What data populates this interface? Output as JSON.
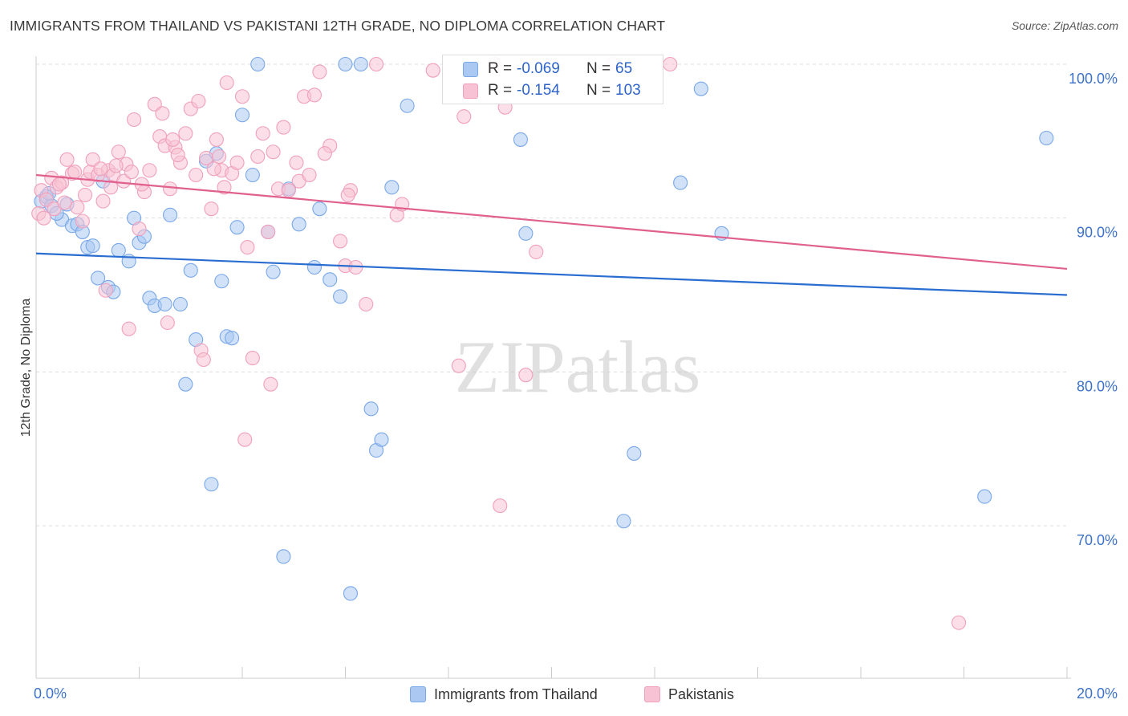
{
  "chart_data": {
    "type": "scatter",
    "title": "IMMIGRANTS FROM THAILAND VS PAKISTANI 12TH GRADE, NO DIPLOMA CORRELATION CHART",
    "source": "Source: ZipAtlas.com",
    "xlabel": "",
    "ylabel": "12th Grade, No Diploma",
    "xlim": [
      0,
      20
    ],
    "ylim": [
      60,
      100
    ],
    "x_tick_labels": [
      "0.0%",
      "20.0%"
    ],
    "y_ticks": [
      70,
      80,
      90,
      100
    ],
    "y_tick_labels": [
      "70.0%",
      "80.0%",
      "90.0%",
      "100.0%"
    ],
    "grid": true,
    "watermark": "ZIPatlas",
    "legend": {
      "position": "bottom-center",
      "items": [
        "Immigrants from Thailand",
        "Pakistanis"
      ]
    },
    "stats": [
      {
        "r_label": "R =",
        "r_value": "-0.069",
        "n_label": "N =",
        "n_value": "65"
      },
      {
        "r_label": "R =",
        "r_value": "-0.154",
        "n_label": "N =",
        "n_value": "103"
      }
    ],
    "series": [
      {
        "name": "Immigrants from Thailand",
        "color": "#7aa8e8",
        "fill": "#aac8f2",
        "line_color": "#2a6dd0",
        "trend": {
          "x": [
            0,
            20
          ],
          "y": [
            87.7,
            85.0
          ]
        },
        "points": [
          [
            0.1,
            91.1
          ],
          [
            0.2,
            91.4
          ],
          [
            0.3,
            90.8
          ],
          [
            0.5,
            89.9
          ],
          [
            0.6,
            90.9
          ],
          [
            0.7,
            89.5
          ],
          [
            0.8,
            89.6
          ],
          [
            0.9,
            89.1
          ],
          [
            1.0,
            88.1
          ],
          [
            1.1,
            88.2
          ],
          [
            1.2,
            86.1
          ],
          [
            1.4,
            85.5
          ],
          [
            1.5,
            85.2
          ],
          [
            1.6,
            87.9
          ],
          [
            1.8,
            87.2
          ],
          [
            1.9,
            90.0
          ],
          [
            2.0,
            88.4
          ],
          [
            2.1,
            88.8
          ],
          [
            2.2,
            84.8
          ],
          [
            2.3,
            84.3
          ],
          [
            2.5,
            84.4
          ],
          [
            2.6,
            90.2
          ],
          [
            2.8,
            84.4
          ],
          [
            2.9,
            79.2
          ],
          [
            3.0,
            86.6
          ],
          [
            3.1,
            82.1
          ],
          [
            3.3,
            93.7
          ],
          [
            3.4,
            72.7
          ],
          [
            3.5,
            94.2
          ],
          [
            3.6,
            85.9
          ],
          [
            3.7,
            82.3
          ],
          [
            3.8,
            82.2
          ],
          [
            3.9,
            89.4
          ],
          [
            4.0,
            96.7
          ],
          [
            4.2,
            92.8
          ],
          [
            4.3,
            100.0
          ],
          [
            4.5,
            89.1
          ],
          [
            4.6,
            86.5
          ],
          [
            4.8,
            68.0
          ],
          [
            4.9,
            91.9
          ],
          [
            5.1,
            89.6
          ],
          [
            5.4,
            86.8
          ],
          [
            5.5,
            90.6
          ],
          [
            5.7,
            86.0
          ],
          [
            5.9,
            84.9
          ],
          [
            6.0,
            100.0
          ],
          [
            6.1,
            65.6
          ],
          [
            6.3,
            100.0
          ],
          [
            6.5,
            77.6
          ],
          [
            6.6,
            74.9
          ],
          [
            6.7,
            75.6
          ],
          [
            6.9,
            92.0
          ],
          [
            7.2,
            97.3
          ],
          [
            9.4,
            95.1
          ],
          [
            9.5,
            89.0
          ],
          [
            11.4,
            70.3
          ],
          [
            11.6,
            74.7
          ],
          [
            12.5,
            92.3
          ],
          [
            12.9,
            98.4
          ],
          [
            13.3,
            89.0
          ],
          [
            18.4,
            71.9
          ],
          [
            19.6,
            95.2
          ],
          [
            0.25,
            91.6
          ],
          [
            0.4,
            90.3
          ],
          [
            1.3,
            92.4
          ]
        ]
      },
      {
        "name": "Pakistanis",
        "color": "#f0a0bc",
        "fill": "#f7c3d4",
        "line_color": "#e0608e",
        "trend": {
          "x": [
            0,
            20
          ],
          "y": [
            92.8,
            86.7
          ]
        },
        "points": [
          [
            0.05,
            90.3
          ],
          [
            0.1,
            91.8
          ],
          [
            0.15,
            90.0
          ],
          [
            0.2,
            91.2
          ],
          [
            0.3,
            92.6
          ],
          [
            0.35,
            90.6
          ],
          [
            0.4,
            92.0
          ],
          [
            0.5,
            92.3
          ],
          [
            0.6,
            93.8
          ],
          [
            0.7,
            92.9
          ],
          [
            0.8,
            90.7
          ],
          [
            0.9,
            89.8
          ],
          [
            1.0,
            92.5
          ],
          [
            1.05,
            93.0
          ],
          [
            1.1,
            93.8
          ],
          [
            1.2,
            92.8
          ],
          [
            1.3,
            91.1
          ],
          [
            1.4,
            93.1
          ],
          [
            1.5,
            92.8
          ],
          [
            1.6,
            94.3
          ],
          [
            1.7,
            92.4
          ],
          [
            1.75,
            93.5
          ],
          [
            1.8,
            82.8
          ],
          [
            1.9,
            96.4
          ],
          [
            2.0,
            89.3
          ],
          [
            2.1,
            91.7
          ],
          [
            2.2,
            93.1
          ],
          [
            2.3,
            97.4
          ],
          [
            2.4,
            95.3
          ],
          [
            2.5,
            94.7
          ],
          [
            2.6,
            91.9
          ],
          [
            2.7,
            94.6
          ],
          [
            2.8,
            93.6
          ],
          [
            2.9,
            95.5
          ],
          [
            3.0,
            97.1
          ],
          [
            3.1,
            92.8
          ],
          [
            3.2,
            81.4
          ],
          [
            3.3,
            93.9
          ],
          [
            3.4,
            90.6
          ],
          [
            3.5,
            95.1
          ],
          [
            3.6,
            93.1
          ],
          [
            3.7,
            98.8
          ],
          [
            3.8,
            92.9
          ],
          [
            3.9,
            93.6
          ],
          [
            4.0,
            97.9
          ],
          [
            4.1,
            88.1
          ],
          [
            4.2,
            80.9
          ],
          [
            4.3,
            94.0
          ],
          [
            4.4,
            95.5
          ],
          [
            4.5,
            89.1
          ],
          [
            4.6,
            94.3
          ],
          [
            4.7,
            91.9
          ],
          [
            4.8,
            95.9
          ],
          [
            4.9,
            91.8
          ],
          [
            5.1,
            92.4
          ],
          [
            5.2,
            97.9
          ],
          [
            5.3,
            92.8
          ],
          [
            5.4,
            98.0
          ],
          [
            5.5,
            99.5
          ],
          [
            5.7,
            94.7
          ],
          [
            5.9,
            88.5
          ],
          [
            6.0,
            86.9
          ],
          [
            6.1,
            91.8
          ],
          [
            6.2,
            86.8
          ],
          [
            6.4,
            84.4
          ],
          [
            6.6,
            100.0
          ],
          [
            7.0,
            90.2
          ],
          [
            7.1,
            90.9
          ],
          [
            7.7,
            99.6
          ],
          [
            8.2,
            80.4
          ],
          [
            8.3,
            96.6
          ],
          [
            9.0,
            71.3
          ],
          [
            9.1,
            97.2
          ],
          [
            9.5,
            79.8
          ],
          [
            9.7,
            87.8
          ],
          [
            11.2,
            100.0
          ],
          [
            12.3,
            100.0
          ],
          [
            17.9,
            63.7
          ],
          [
            0.45,
            92.2
          ],
          [
            0.55,
            91.0
          ],
          [
            0.75,
            93.0
          ],
          [
            0.95,
            91.5
          ],
          [
            1.25,
            93.2
          ],
          [
            1.35,
            85.3
          ],
          [
            1.45,
            92.0
          ],
          [
            1.55,
            93.4
          ],
          [
            1.85,
            93.0
          ],
          [
            2.05,
            92.2
          ],
          [
            2.45,
            96.8
          ],
          [
            2.55,
            83.2
          ],
          [
            2.65,
            95.1
          ],
          [
            2.75,
            94.1
          ],
          [
            3.15,
            97.6
          ],
          [
            3.25,
            80.8
          ],
          [
            3.45,
            93.2
          ],
          [
            3.55,
            94.0
          ],
          [
            3.65,
            92.0
          ],
          [
            4.05,
            75.6
          ],
          [
            4.55,
            79.2
          ],
          [
            5.05,
            93.6
          ],
          [
            5.6,
            94.2
          ],
          [
            6.05,
            91.5
          ],
          [
            8.9,
            100.0
          ]
        ]
      }
    ]
  }
}
